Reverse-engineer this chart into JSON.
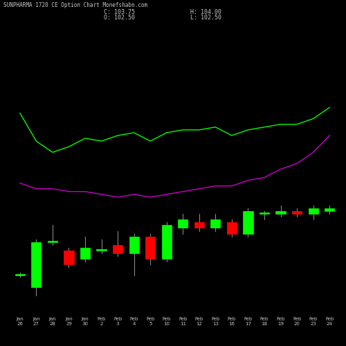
{
  "title": "SUNPHARMA 1720 CE Option Chart Monefshabn.com",
  "background_color": "#000000",
  "text_color": "#c8c8c8",
  "green_line_color": "#00ff00",
  "magenta_line_color": "#cc00cc",
  "green_candle_color": "#00ff00",
  "red_candle_color": "#ff0000",
  "wick_color": "#888888",
  "x_labels": [
    "Jan\n26",
    "Jan\n27",
    "Jan\n28",
    "Jan\n29",
    "Jan\n30",
    "Feb\n2",
    "Feb\n3",
    "Feb\n4",
    "Feb\n5",
    "Feb\n10",
    "Feb\n11",
    "Feb\n12",
    "Feb\n13",
    "Feb\n16",
    "Feb\n17",
    "Feb\n18",
    "Feb\n19",
    "Feb\n20",
    "Feb\n23",
    "Feb\n24"
  ],
  "candles": [
    {
      "open": 14,
      "close": 14,
      "high": 15,
      "low": 13.5,
      "x": 0
    },
    {
      "open": 10,
      "close": 26,
      "high": 27,
      "low": 7,
      "x": 1
    },
    {
      "open": 26,
      "close": 26,
      "high": 32,
      "low": 25,
      "x": 2
    },
    {
      "open": 23,
      "close": 18,
      "high": 24,
      "low": 17,
      "x": 3
    },
    {
      "open": 20,
      "close": 24,
      "high": 28,
      "low": 19,
      "x": 4
    },
    {
      "open": 23,
      "close": 23,
      "high": 27,
      "low": 22,
      "x": 5
    },
    {
      "open": 25,
      "close": 22,
      "high": 30,
      "low": 21,
      "x": 6
    },
    {
      "open": 22,
      "close": 28,
      "high": 29,
      "low": 14,
      "x": 7
    },
    {
      "open": 28,
      "close": 20,
      "high": 29,
      "low": 18,
      "x": 8
    },
    {
      "open": 20,
      "close": 32,
      "high": 33,
      "low": 19,
      "x": 9
    },
    {
      "open": 31,
      "close": 34,
      "high": 36,
      "low": 29,
      "x": 10
    },
    {
      "open": 33,
      "close": 31,
      "high": 36,
      "low": 30,
      "x": 11
    },
    {
      "open": 31,
      "close": 34,
      "high": 36,
      "low": 30,
      "x": 12
    },
    {
      "open": 33,
      "close": 29,
      "high": 34,
      "low": 28,
      "x": 13
    },
    {
      "open": 29,
      "close": 37,
      "high": 38,
      "low": 28,
      "x": 14
    },
    {
      "open": 36,
      "close": 36,
      "high": 37,
      "low": 34,
      "x": 15
    },
    {
      "open": 36,
      "close": 37,
      "high": 39,
      "low": 35,
      "x": 16
    },
    {
      "open": 37,
      "close": 36,
      "high": 38,
      "low": 35,
      "x": 17
    },
    {
      "open": 36,
      "close": 38,
      "high": 39,
      "low": 34,
      "x": 18
    },
    {
      "open": 37,
      "close": 38,
      "high": 39,
      "low": 36,
      "x": 19
    }
  ],
  "green_line": [
    72,
    62,
    58,
    60,
    63,
    62,
    64,
    65,
    62,
    65,
    66,
    66,
    67,
    64,
    66,
    67,
    68,
    68,
    70,
    74
  ],
  "magenta_line": [
    47,
    45,
    45,
    44,
    44,
    43,
    42,
    43,
    42,
    43,
    44,
    45,
    46,
    46,
    48,
    49,
    52,
    54,
    58,
    64
  ],
  "ylim": [
    0,
    100
  ],
  "n_ticks": 20,
  "figsize": [
    5.0,
    5.0
  ],
  "dpi": 100
}
